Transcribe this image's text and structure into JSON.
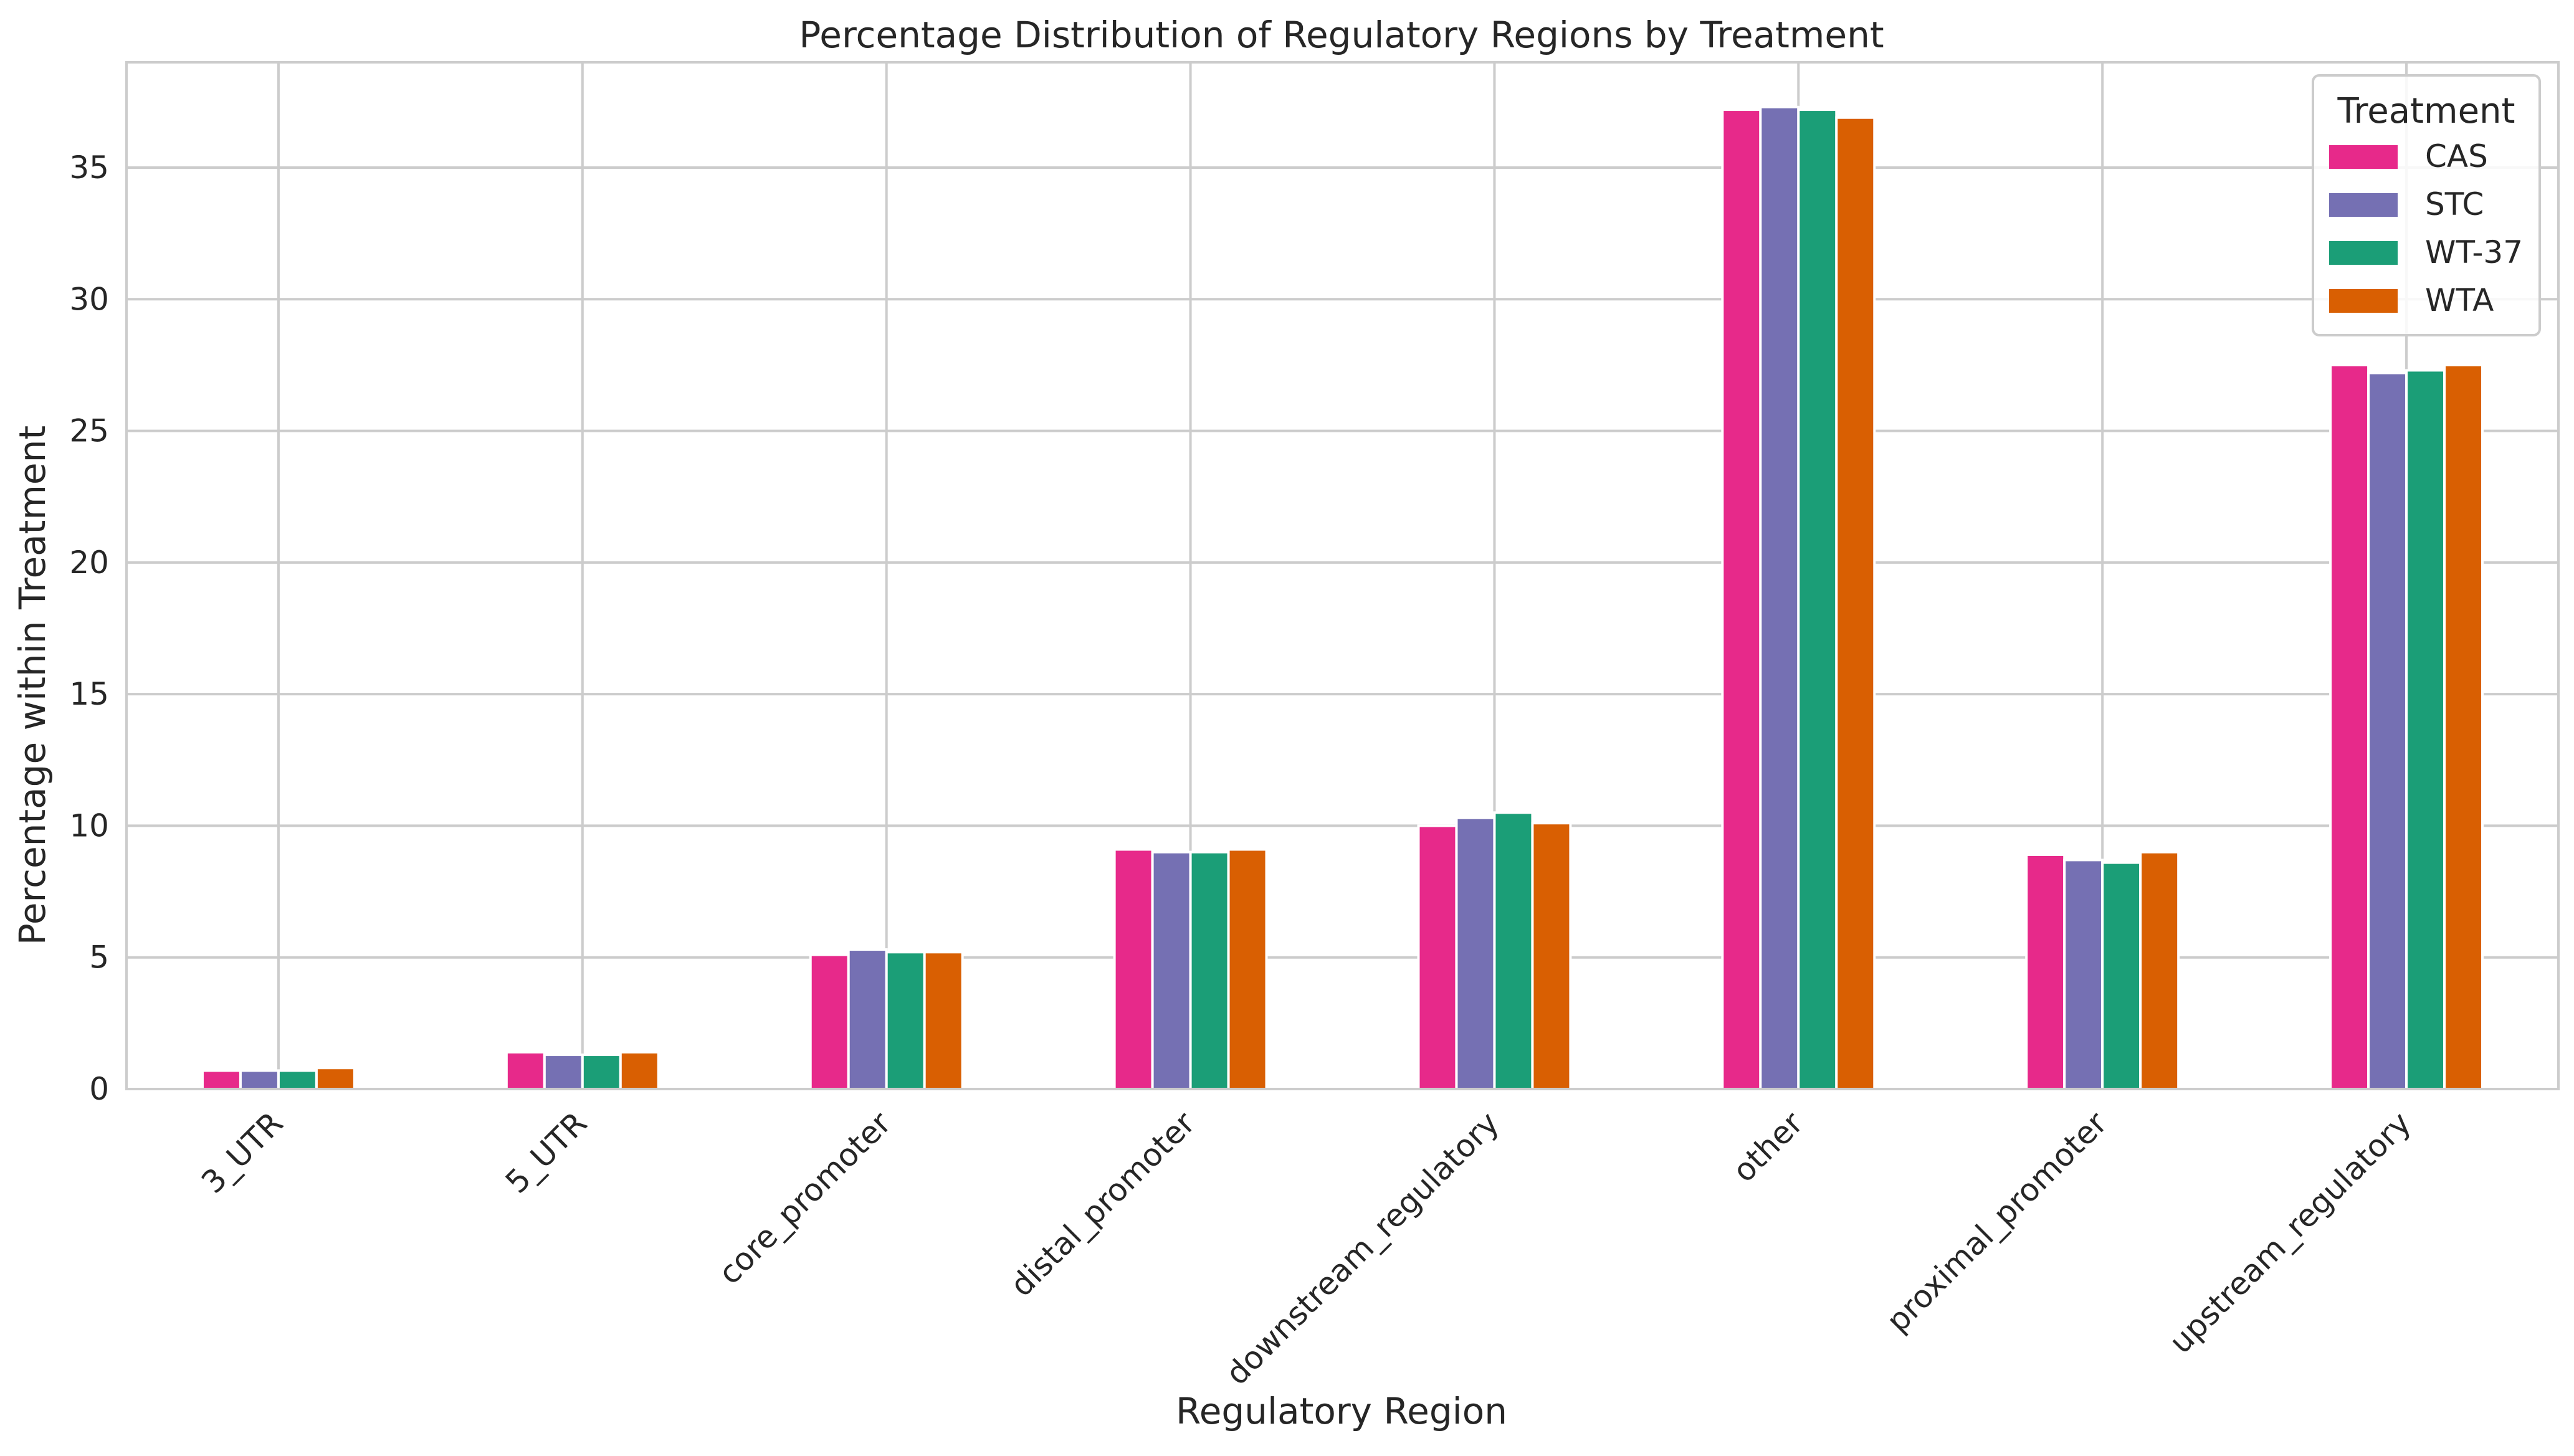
{
  "chart_data": {
    "type": "bar",
    "title": "Percentage Distribution of Regulatory Regions by Treatment",
    "xlabel": "Regulatory Region",
    "ylabel": "Percentage within Treatment",
    "ylim": [
      0,
      39
    ],
    "yticks": [
      0,
      5,
      10,
      15,
      20,
      25,
      30,
      35
    ],
    "grid": true,
    "legend": {
      "title": "Treatment",
      "placement": "top-right"
    },
    "categories": [
      "3_UTR",
      "5_UTR",
      "core_promoter",
      "distal_promoter",
      "downstream_regulatory",
      "other",
      "proximal_promoter",
      "upstream_regulatory"
    ],
    "series": [
      {
        "name": "CAS",
        "color": "#e7298a",
        "values": [
          0.7,
          1.4,
          5.1,
          9.1,
          10.0,
          37.2,
          8.9,
          27.5
        ]
      },
      {
        "name": "STC",
        "color": "#7570b3",
        "values": [
          0.7,
          1.3,
          5.3,
          9.0,
          10.3,
          37.3,
          8.7,
          27.2
        ]
      },
      {
        "name": "WT-37",
        "color": "#1b9e77",
        "values": [
          0.7,
          1.3,
          5.2,
          9.0,
          10.5,
          37.2,
          8.6,
          27.3
        ]
      },
      {
        "name": "WTA",
        "color": "#d95f02",
        "values": [
          0.8,
          1.4,
          5.2,
          9.1,
          10.1,
          36.9,
          9.0,
          27.5
        ]
      }
    ]
  }
}
